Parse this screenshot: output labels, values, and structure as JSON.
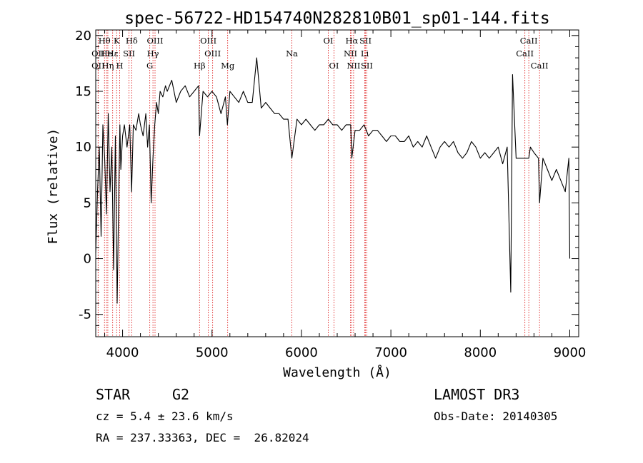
{
  "chart_data": {
    "type": "line",
    "title": "spec-56722-HD154740N282810B01_sp01-144.fits",
    "xlabel": "Wavelength (Å)",
    "ylabel": "Flux (relative)",
    "xlim": [
      3700,
      9100
    ],
    "ylim": [
      -7,
      20.5
    ],
    "xticks": [
      4000,
      5000,
      6000,
      7000,
      8000,
      9000
    ],
    "yticks": [
      -5,
      0,
      5,
      10,
      15,
      20
    ],
    "series": [
      {
        "name": "flux",
        "x": [
          3700,
          3720,
          3740,
          3760,
          3780,
          3800,
          3820,
          3840,
          3860,
          3880,
          3900,
          3920,
          3940,
          3960,
          3970,
          3980,
          4000,
          4020,
          4050,
          4080,
          4101,
          4120,
          4150,
          4180,
          4200,
          4230,
          4260,
          4280,
          4300,
          4320,
          4340,
          4360,
          4380,
          4400,
          4420,
          4450,
          4480,
          4500,
          4550,
          4600,
          4650,
          4700,
          4750,
          4800,
          4850,
          4861,
          4900,
          4950,
          5000,
          5050,
          5100,
          5150,
          5172,
          5200,
          5250,
          5300,
          5350,
          5400,
          5450,
          5500,
          5550,
          5600,
          5650,
          5700,
          5750,
          5800,
          5850,
          5893,
          5950,
          6000,
          6050,
          6100,
          6150,
          6200,
          6250,
          6300,
          6350,
          6400,
          6450,
          6500,
          6550,
          6563,
          6600,
          6650,
          6700,
          6750,
          6800,
          6850,
          6900,
          6950,
          7000,
          7050,
          7100,
          7150,
          7200,
          7250,
          7300,
          7350,
          7400,
          7450,
          7500,
          7550,
          7600,
          7650,
          7700,
          7750,
          7800,
          7850,
          7900,
          7950,
          8000,
          8050,
          8100,
          8150,
          8200,
          8250,
          8300,
          8340,
          8360,
          8400,
          8450,
          8500,
          8542,
          8560,
          8600,
          8650,
          8662,
          8700,
          8750,
          8800,
          8850,
          8900,
          8950,
          8990,
          9000
        ],
        "values": [
          0.5,
          6,
          10,
          2,
          12,
          9,
          4,
          13,
          6,
          10,
          -1,
          11,
          -4,
          7,
          12,
          8,
          11,
          12,
          10,
          12,
          6,
          12,
          11.5,
          13,
          12,
          11,
          13,
          10,
          12,
          5,
          9,
          12,
          14,
          13,
          15,
          14.5,
          15.5,
          15,
          16,
          14,
          15,
          15.5,
          14.5,
          15,
          15.5,
          11,
          15,
          14.5,
          15,
          14.5,
          13,
          14.5,
          12,
          15,
          14.5,
          14,
          15,
          14,
          14,
          18,
          13.5,
          14,
          13.5,
          13,
          13,
          12.5,
          12.5,
          9,
          12.5,
          12,
          12.5,
          12,
          11.5,
          12,
          12,
          12.5,
          12,
          12,
          11.5,
          12,
          12,
          9,
          11.5,
          11.5,
          12,
          11,
          11.5,
          11.5,
          11,
          10.5,
          11,
          11,
          10.5,
          10.5,
          11,
          10,
          10.5,
          10,
          11,
          10,
          9,
          10,
          10.5,
          10,
          10.5,
          9.5,
          9,
          9.5,
          10.5,
          10,
          9,
          9.5,
          9,
          9.5,
          10,
          8.5,
          10,
          -3,
          16.5,
          9,
          9,
          9,
          9,
          10,
          9.5,
          9,
          5,
          9,
          8,
          7,
          8,
          7,
          6,
          9,
          0
        ]
      }
    ],
    "line_markers": [
      {
        "label": "Hθ",
        "x": 3798,
        "row": 0
      },
      {
        "label": "OII",
        "x": 3727,
        "row": 1
      },
      {
        "label": "OII",
        "x": 3727,
        "row": 2
      },
      {
        "label": "He",
        "x": 3820,
        "row": 1
      },
      {
        "label": "Hη",
        "x": 3835,
        "row": 2
      },
      {
        "label": "K",
        "x": 3934,
        "row": 0
      },
      {
        "label": "Hε",
        "x": 3889,
        "row": 1
      },
      {
        "label": "SII",
        "x": 4072,
        "row": 1
      },
      {
        "label": "H",
        "x": 3968,
        "row": 2
      },
      {
        "label": "Hδ",
        "x": 4102,
        "row": 0
      },
      {
        "label": "OIII",
        "x": 4363,
        "row": 0
      },
      {
        "label": "Hγ",
        "x": 4340,
        "row": 1
      },
      {
        "label": "G",
        "x": 4304,
        "row": 2
      },
      {
        "label": "OIII",
        "x": 4959,
        "row": 0
      },
      {
        "label": "OIII",
        "x": 5007,
        "row": 1
      },
      {
        "label": "Hβ",
        "x": 4861,
        "row": 2
      },
      {
        "label": "Mg",
        "x": 5175,
        "row": 2
      },
      {
        "label": "Na",
        "x": 5893,
        "row": 1
      },
      {
        "label": "OI",
        "x": 6300,
        "row": 0
      },
      {
        "label": "OI",
        "x": 6364,
        "row": 2
      },
      {
        "label": "Hα",
        "x": 6563,
        "row": 0
      },
      {
        "label": "SII",
        "x": 6716,
        "row": 0
      },
      {
        "label": "NII",
        "x": 6548,
        "row": 1
      },
      {
        "label": "Li",
        "x": 6708,
        "row": 1
      },
      {
        "label": "NII",
        "x": 6583,
        "row": 2
      },
      {
        "label": "SII",
        "x": 6731,
        "row": 2
      },
      {
        "label": "CaII",
        "x": 8542,
        "row": 0
      },
      {
        "label": "CaII",
        "x": 8498,
        "row": 1
      },
      {
        "label": "CaII",
        "x": 8662,
        "row": 2
      }
    ]
  },
  "info": {
    "object_class": "STAR",
    "subclass": "G2",
    "survey": "LAMOST DR3",
    "redshift": "cz = 5.4 ± 23.6 km/s",
    "obs_date": "Obs-Date: 20140305",
    "coords": "RA = 237.33363, DEC =  26.82024"
  }
}
